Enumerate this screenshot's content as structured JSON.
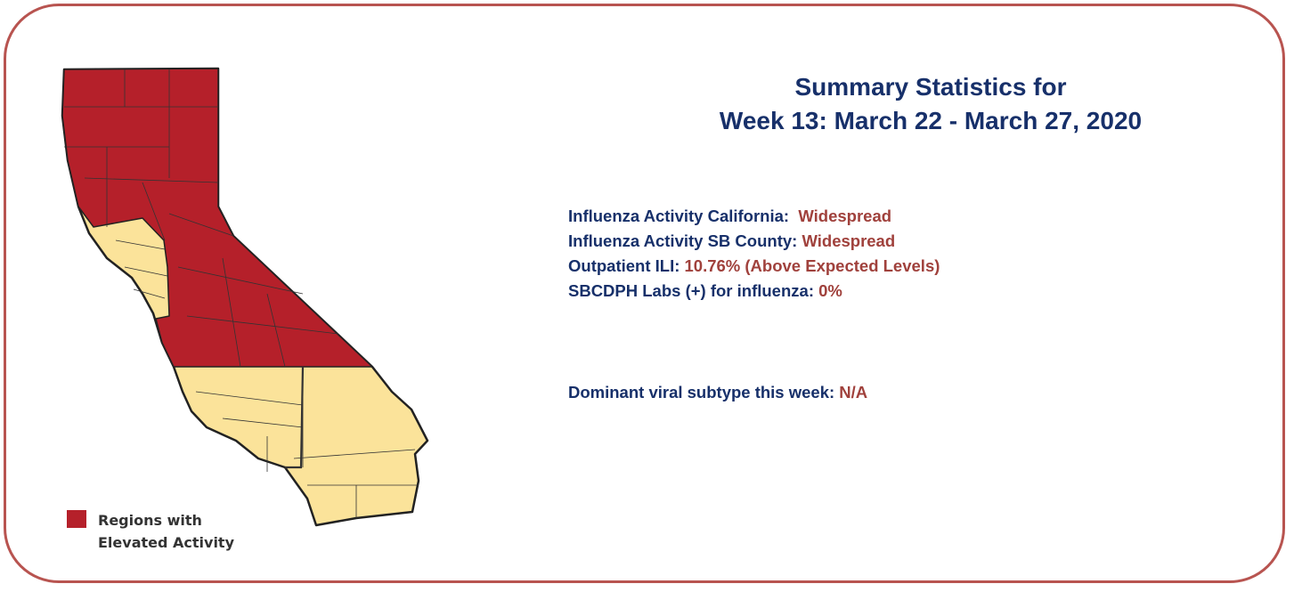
{
  "summary": {
    "title": [
      "Summary Statistics for",
      "Week 13: March 22 - March 27, 2020"
    ],
    "stats": [
      {
        "label": "Influenza Activity California:",
        "value": "Widespread"
      },
      {
        "label": "Influenza Activity SB County:",
        "value": "Widespread"
      },
      {
        "label": "Outpatient ILI:",
        "value": "10.76% (Above Expected Levels)"
      },
      {
        "label": "SBCDPH Labs (+) for influenza:",
        "value": "0%"
      }
    ],
    "dominant": {
      "label": "Dominant viral subtype this week:",
      "value": "N/A"
    }
  },
  "map": {
    "legend": [
      "Regions with",
      "Elevated Activity"
    ]
  }
}
